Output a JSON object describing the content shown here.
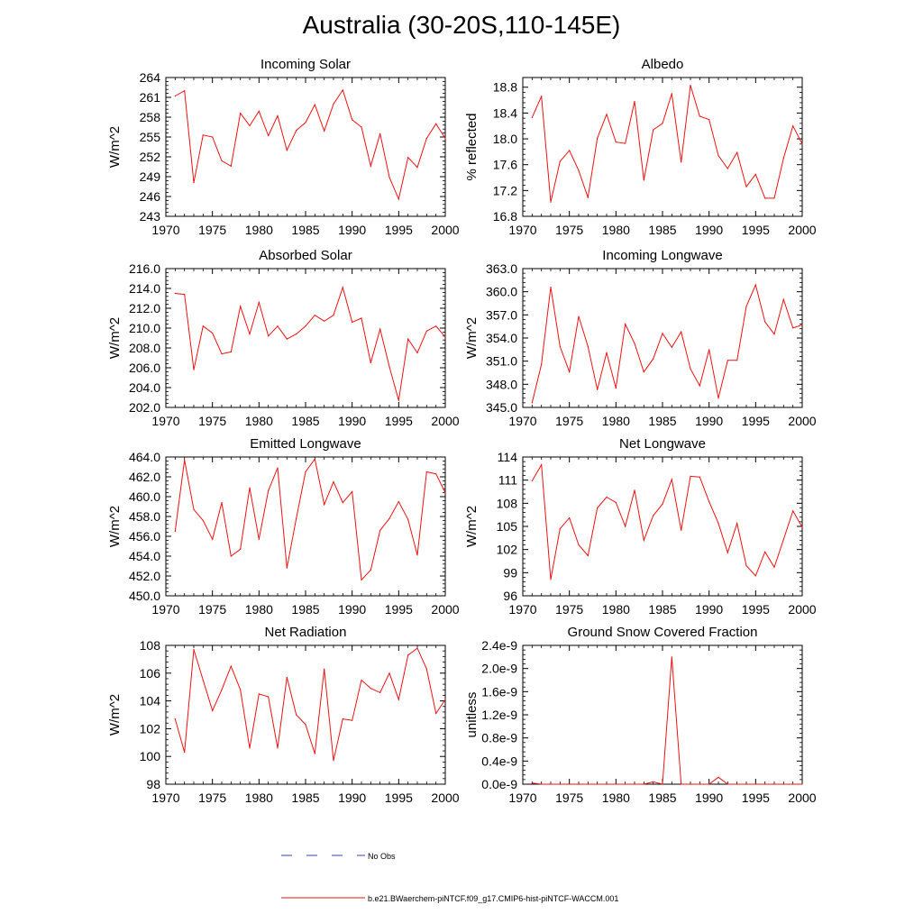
{
  "title": "Australia (30-20S,110-145E)",
  "legend": {
    "obs_label": "No Obs",
    "obs_color": "#3344aa",
    "model_label": "b.e21.BWaerchem-piNTCF.f09_g17.CMIP6-hist-piNTCF-WACCM.001",
    "model_color": "#ee1111"
  },
  "chart_data": [
    {
      "type": "line",
      "title": "Incoming Solar",
      "ylabel": "W/m^2",
      "xlim": [
        1970,
        2000
      ],
      "ylim": [
        243,
        264
      ],
      "xticks": [
        1970,
        1975,
        1980,
        1985,
        1990,
        1995,
        2000
      ],
      "yticks": [
        243,
        246,
        249,
        252,
        255,
        258,
        261,
        264
      ],
      "yticklabels": [
        "243",
        "246",
        "249",
        "252",
        "255",
        "258",
        "261",
        "264"
      ],
      "x": [
        1971,
        1972,
        1973,
        1974,
        1975,
        1976,
        1977,
        1978,
        1979,
        1980,
        1981,
        1982,
        1983,
        1984,
        1985,
        1986,
        1987,
        1988,
        1989,
        1990,
        1991,
        1992,
        1993,
        1994,
        1995,
        1996,
        1997,
        1998,
        1999,
        2000
      ],
      "series": [
        {
          "values": [
            261.2,
            262,
            248.1,
            255.3,
            255,
            251.4,
            250.6,
            258.6,
            256.7,
            258.9,
            255.2,
            258.2,
            253,
            256,
            257.2,
            259.9,
            255.9,
            260,
            262.1,
            257.6,
            256.5,
            250.6,
            255.5,
            248.9,
            245.6,
            251.9,
            250.4,
            254.8,
            257,
            254.8
          ]
        }
      ]
    },
    {
      "type": "line",
      "title": "Albedo",
      "ylabel": "% reflected",
      "xlim": [
        1970,
        2000
      ],
      "ylim": [
        16.8,
        18.95
      ],
      "xticks": [
        1970,
        1975,
        1980,
        1985,
        1990,
        1995,
        2000
      ],
      "yticks": [
        16.8,
        17.2,
        17.6,
        18.0,
        18.4,
        18.8
      ],
      "yticklabels": [
        "16.8",
        "17.2",
        "17.6",
        "18.0",
        "18.4",
        "18.8"
      ],
      "x": [
        1971,
        1972,
        1973,
        1974,
        1975,
        1976,
        1977,
        1978,
        1979,
        1980,
        1981,
        1982,
        1983,
        1984,
        1985,
        1986,
        1987,
        1988,
        1989,
        1990,
        1991,
        1992,
        1993,
        1994,
        1995,
        1996,
        1997,
        1998,
        1999,
        2000
      ],
      "series": [
        {
          "values": [
            18.33,
            18.66,
            17.02,
            17.65,
            17.82,
            17.51,
            17.09,
            18.01,
            18.38,
            17.95,
            17.93,
            18.58,
            17.36,
            18.14,
            18.24,
            18.7,
            17.64,
            18.83,
            18.35,
            18.3,
            17.74,
            17.54,
            17.79,
            17.26,
            17.45,
            17.08,
            17.08,
            17.7,
            18.2,
            17.92
          ]
        }
      ]
    },
    {
      "type": "line",
      "title": "Absorbed Solar",
      "ylabel": "W/m^2",
      "xlim": [
        1970,
        2000
      ],
      "ylim": [
        202,
        216
      ],
      "xticks": [
        1970,
        1975,
        1980,
        1985,
        1990,
        1995,
        2000
      ],
      "yticks": [
        202,
        204,
        206,
        208,
        210,
        212,
        214,
        216
      ],
      "yticklabels": [
        "202.0",
        "204.0",
        "206.0",
        "208.0",
        "210.0",
        "212.0",
        "214.0",
        "216.0"
      ],
      "x": [
        1971,
        1972,
        1973,
        1974,
        1975,
        1976,
        1977,
        1978,
        1979,
        1980,
        1981,
        1982,
        1983,
        1984,
        1985,
        1986,
        1987,
        1988,
        1989,
        1990,
        1991,
        1992,
        1993,
        1994,
        1995,
        1996,
        1997,
        1998,
        1999,
        2000
      ],
      "series": [
        {
          "values": [
            213.5,
            213.4,
            205.8,
            210.2,
            209.5,
            207.4,
            207.6,
            212.2,
            209.4,
            212.6,
            209.2,
            210.2,
            208.9,
            209.4,
            210.2,
            211.3,
            210.7,
            211.3,
            214.1,
            210.6,
            211,
            206.5,
            209.9,
            206.1,
            202.7,
            208.9,
            207.5,
            209.7,
            210.2,
            209.1
          ]
        }
      ]
    },
    {
      "type": "line",
      "title": "Incoming Longwave",
      "ylabel": "W/m^2",
      "xlim": [
        1970,
        2000
      ],
      "ylim": [
        345,
        363
      ],
      "xticks": [
        1970,
        1975,
        1980,
        1985,
        1990,
        1995,
        2000
      ],
      "yticks": [
        345,
        348,
        351,
        354,
        357,
        360,
        363
      ],
      "yticklabels": [
        "345.0",
        "348.0",
        "351.0",
        "354.0",
        "357.0",
        "360.0",
        "363.0"
      ],
      "x": [
        1971,
        1972,
        1973,
        1974,
        1975,
        1976,
        1977,
        1978,
        1979,
        1980,
        1981,
        1982,
        1983,
        1984,
        1985,
        1986,
        1987,
        1988,
        1989,
        1990,
        1991,
        1992,
        1993,
        1994,
        1995,
        1996,
        1997,
        1998,
        1999,
        2000
      ],
      "series": [
        {
          "values": [
            345.6,
            350.6,
            360.6,
            352.9,
            349.6,
            356.8,
            352.9,
            347.3,
            352.1,
            347.5,
            355.8,
            353.3,
            349.6,
            351.3,
            354.6,
            352.8,
            354.8,
            350,
            347.8,
            352.5,
            346.2,
            351.1,
            351.1,
            358.1,
            360.9,
            356.1,
            354.5,
            359,
            355.3,
            355.7
          ]
        }
      ]
    },
    {
      "type": "line",
      "title": "Emitted Longwave",
      "ylabel": "W/m^2",
      "xlim": [
        1970,
        2000
      ],
      "ylim": [
        450,
        464
      ],
      "xticks": [
        1970,
        1975,
        1980,
        1985,
        1990,
        1995,
        2000
      ],
      "yticks": [
        450,
        452,
        454,
        456,
        458,
        460,
        462,
        464
      ],
      "yticklabels": [
        "450.0",
        "452.0",
        "454.0",
        "456.0",
        "458.0",
        "460.0",
        "462.0",
        "464.0"
      ],
      "x": [
        1971,
        1972,
        1973,
        1974,
        1975,
        1976,
        1977,
        1978,
        1979,
        1980,
        1981,
        1982,
        1983,
        1984,
        1985,
        1986,
        1987,
        1988,
        1989,
        1990,
        1991,
        1992,
        1993,
        1994,
        1995,
        1996,
        1997,
        1998,
        1999,
        2000
      ],
      "series": [
        {
          "values": [
            456.5,
            463.7,
            458.7,
            457.6,
            455.7,
            459.4,
            454,
            454.7,
            460.9,
            455.7,
            460.6,
            462.9,
            452.8,
            457.8,
            462.5,
            463.8,
            459.2,
            461.5,
            459.4,
            460.5,
            451.6,
            452.6,
            456.6,
            457.8,
            459.5,
            457.7,
            454.1,
            462.5,
            462.3,
            460.4
          ]
        }
      ]
    },
    {
      "type": "line",
      "title": "Net Longwave",
      "ylabel": "W/m^2",
      "xlim": [
        1970,
        2000
      ],
      "ylim": [
        96,
        114
      ],
      "xticks": [
        1970,
        1975,
        1980,
        1985,
        1990,
        1995,
        2000
      ],
      "yticks": [
        96,
        99,
        102,
        105,
        108,
        111,
        114
      ],
      "yticklabels": [
        "96",
        "99",
        "102",
        "105",
        "108",
        "111",
        "114"
      ],
      "x": [
        1971,
        1972,
        1973,
        1974,
        1975,
        1976,
        1977,
        1978,
        1979,
        1980,
        1981,
        1982,
        1983,
        1984,
        1985,
        1986,
        1987,
        1988,
        1989,
        1990,
        1991,
        1992,
        1993,
        1994,
        1995,
        1996,
        1997,
        1998,
        1999,
        2000
      ],
      "series": [
        {
          "values": [
            110.9,
            113,
            98.1,
            104.7,
            106.1,
            102.6,
            101.2,
            107.4,
            108.8,
            108.1,
            105,
            109.7,
            103.2,
            106.4,
            107.9,
            111.1,
            104.5,
            111.5,
            111.4,
            108.2,
            105.4,
            101.6,
            105.4,
            99.9,
            98.6,
            101.7,
            99.7,
            103.3,
            107,
            104.9
          ]
        }
      ]
    },
    {
      "type": "line",
      "title": "Net Radiation",
      "ylabel": "W/m^2",
      "xlim": [
        1970,
        2000
      ],
      "ylim": [
        98,
        108
      ],
      "xticks": [
        1970,
        1975,
        1980,
        1985,
        1990,
        1995,
        2000
      ],
      "yticks": [
        98,
        100,
        102,
        104,
        106,
        108
      ],
      "yticklabels": [
        "98",
        "100",
        "102",
        "104",
        "106",
        "108"
      ],
      "x": [
        1971,
        1972,
        1973,
        1974,
        1975,
        1976,
        1977,
        1978,
        1979,
        1980,
        1981,
        1982,
        1983,
        1984,
        1985,
        1986,
        1987,
        1988,
        1989,
        1990,
        1991,
        1992,
        1993,
        1994,
        1995,
        1996,
        1997,
        1998,
        1999,
        2000
      ],
      "series": [
        {
          "values": [
            102.7,
            100.3,
            107.7,
            105.5,
            103.3,
            104.8,
            106.5,
            104.8,
            100.6,
            104.5,
            104.3,
            100.6,
            105.7,
            103,
            102.3,
            100.2,
            106.3,
            99.7,
            102.7,
            102.6,
            105.5,
            104.9,
            104.6,
            106,
            104.1,
            107.3,
            107.8,
            106.3,
            103.1,
            104.1
          ]
        }
      ]
    },
    {
      "type": "line",
      "title": "Ground Snow Covered Fraction",
      "ylabel": "unitless",
      "xlim": [
        1970,
        2000
      ],
      "ylim": [
        0,
        2.4e-09
      ],
      "xticks": [
        1970,
        1975,
        1980,
        1985,
        1990,
        1995,
        2000
      ],
      "yticks": [
        0,
        4e-10,
        8e-10,
        1.2e-09,
        1.6e-09,
        2e-09,
        2.4e-09
      ],
      "yticklabels": [
        "0.0e-9",
        "0.4e-9",
        "0.8e-9",
        "1.2e-9",
        "1.6e-9",
        "2.0e-9",
        "2.4e-9"
      ],
      "x": [
        1971,
        1972,
        1973,
        1974,
        1975,
        1976,
        1977,
        1978,
        1979,
        1980,
        1981,
        1982,
        1983,
        1984,
        1985,
        1986,
        1987,
        1988,
        1989,
        1990,
        1991,
        1992,
        1993,
        1994,
        1995,
        1996,
        1997,
        1998,
        1999,
        2000
      ],
      "series": [
        {
          "values": [
            2e-11,
            0,
            0,
            0,
            0,
            0,
            0,
            0,
            0,
            0,
            0,
            0,
            0,
            4e-11,
            0,
            2.2e-09,
            0,
            0,
            0,
            0,
            1.2e-10,
            0,
            0,
            0,
            0,
            0,
            0,
            0,
            0,
            0
          ]
        }
      ]
    }
  ]
}
